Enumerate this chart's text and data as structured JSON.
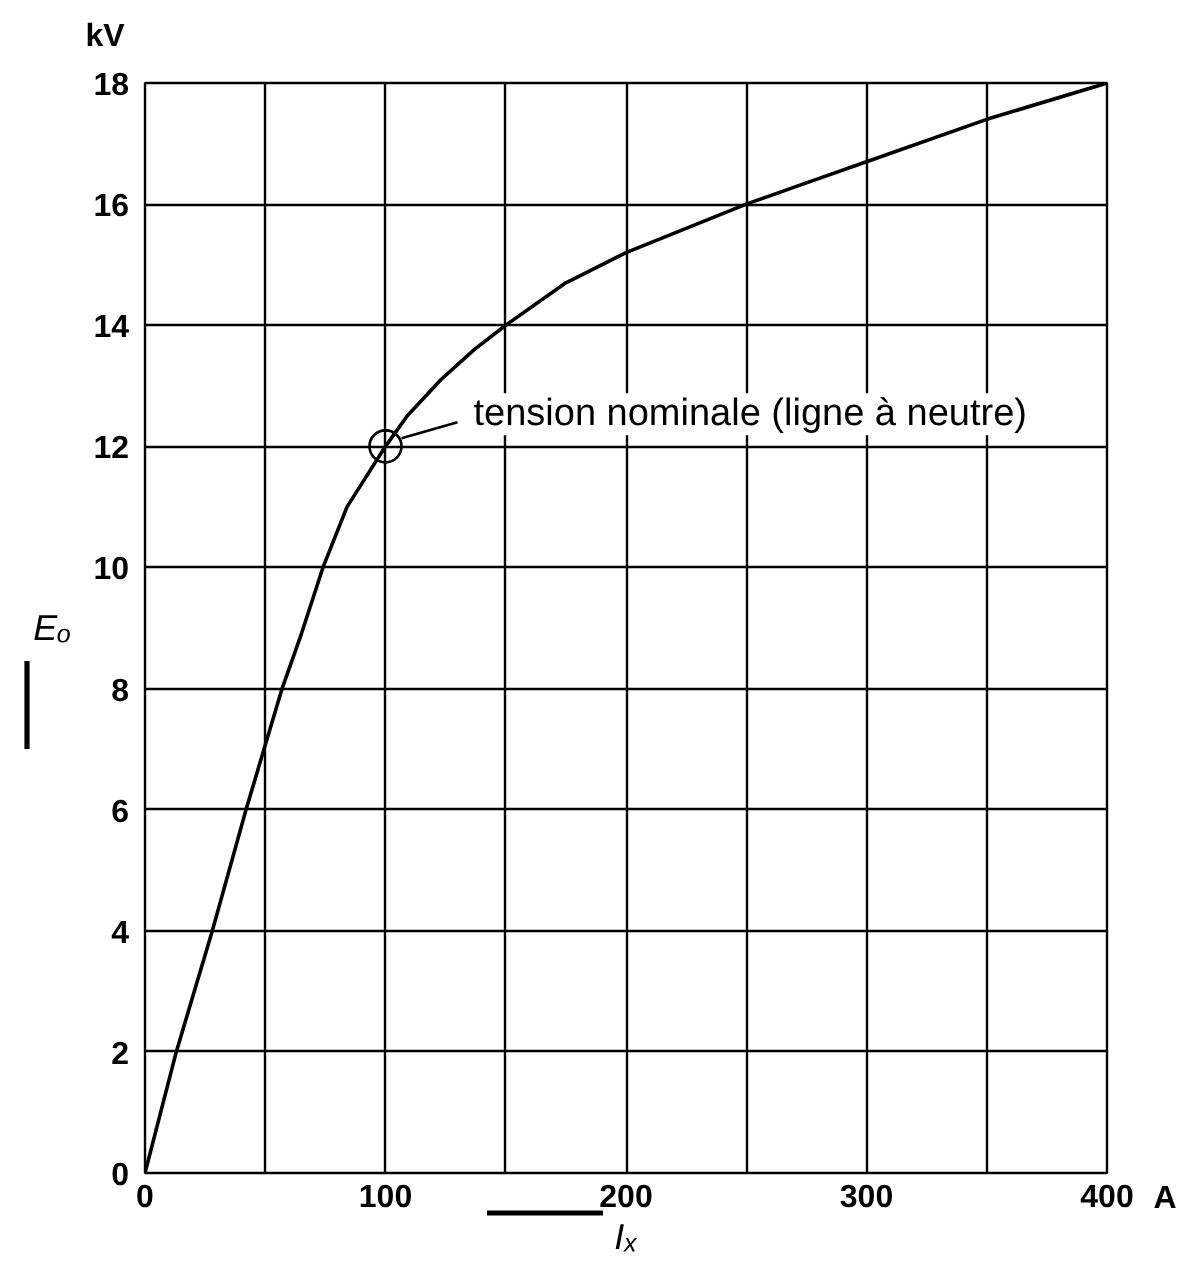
{
  "chart_data": {
    "type": "line",
    "xlabel": "Iₓ",
    "ylabel": "Eₒ",
    "x": [
      0,
      13,
      28,
      42,
      57,
      65,
      74,
      84,
      92,
      100,
      109,
      123,
      137,
      150,
      175,
      200,
      225,
      250,
      275,
      300,
      350,
      400
    ],
    "series": [
      {
        "color": "#000000",
        "values": [
          0,
          2,
          4,
          6,
          8,
          8.9,
          10,
          11,
          11.5,
          12,
          12.5,
          13.1,
          13.6,
          14,
          14.7,
          15.2,
          15.6,
          16,
          16.35,
          16.7,
          17.4,
          18
        ]
      }
    ],
    "xlim": [
      0,
      400
    ],
    "ylim": [
      0,
      18
    ],
    "xticks": [
      0,
      {
        "value": 50,
        "label": null
      },
      100,
      {
        "value": 150,
        "label": null
      },
      200,
      {
        "value": 250,
        "label": null
      },
      300,
      {
        "value": 350,
        "label": null
      },
      400
    ],
    "yticks": [
      0,
      2,
      4,
      6,
      8,
      10,
      12,
      14,
      16,
      18
    ],
    "grid": true,
    "annotations": [
      {
        "text": "tension nominale (ligne à neutre)",
        "x": 100,
        "y": 12
      },
      "kV",
      "A"
    ]
  }
}
